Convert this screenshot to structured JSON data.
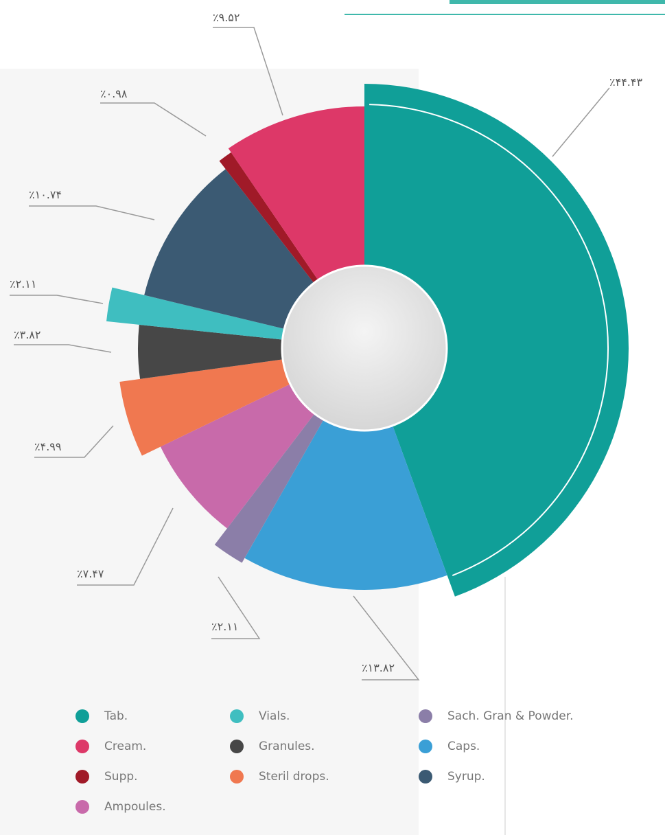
{
  "colors": {
    "teal_line": "#3fb8ab",
    "leader": "#9a9a9a",
    "panel": "#f6f6f6"
  },
  "chart_data": {
    "type": "pie",
    "variant": "nightingale-donut",
    "slices": [
      {
        "key": "tab",
        "label": "Tab.",
        "value": 44.43,
        "value_label": "٪۴۴.۴۳",
        "color": "#109f98"
      },
      {
        "key": "caps",
        "label": "Caps.",
        "value": 13.82,
        "value_label": "٪۱۳.۸۲",
        "color": "#3a9fd6"
      },
      {
        "key": "sach",
        "label": "Sach. Gran & Powder.",
        "value": 2.11,
        "value_label": "٪۲.۱۱",
        "color": "#8b7ea8"
      },
      {
        "key": "ampoules",
        "label": "Ampoules.",
        "value": 7.47,
        "value_label": "٪۷.۴۷",
        "color": "#c86aaa"
      },
      {
        "key": "steril",
        "label": "Steril drops.",
        "value": 4.99,
        "value_label": "٪۴.۹۹",
        "color": "#f07850"
      },
      {
        "key": "granules",
        "label": "Granules.",
        "value": 3.82,
        "value_label": "٪۳.۸۲",
        "color": "#474747"
      },
      {
        "key": "vials",
        "label": "Vials.",
        "value": 2.11,
        "value_label": "٪۲.۱۱",
        "color": "#3fbec0"
      },
      {
        "key": "syrup",
        "label": "Syrup.",
        "value": 10.74,
        "value_label": "٪۱۰.۷۴",
        "color": "#3b5a73"
      },
      {
        "key": "supp",
        "label": "Supp.",
        "value": 0.98,
        "value_label": "٪۰.۹۸",
        "color": "#a01a28"
      },
      {
        "key": "cream",
        "label": "Cream.",
        "value": 9.52,
        "value_label": "٪۹.۵۲",
        "color": "#dd3868"
      }
    ],
    "legend": [
      [
        "tab",
        "vials",
        "sach"
      ],
      [
        "cream",
        "granules",
        "caps"
      ],
      [
        "supp",
        "steril",
        "syrup"
      ],
      [
        "ampoules"
      ]
    ],
    "legend_position": "bottom"
  }
}
